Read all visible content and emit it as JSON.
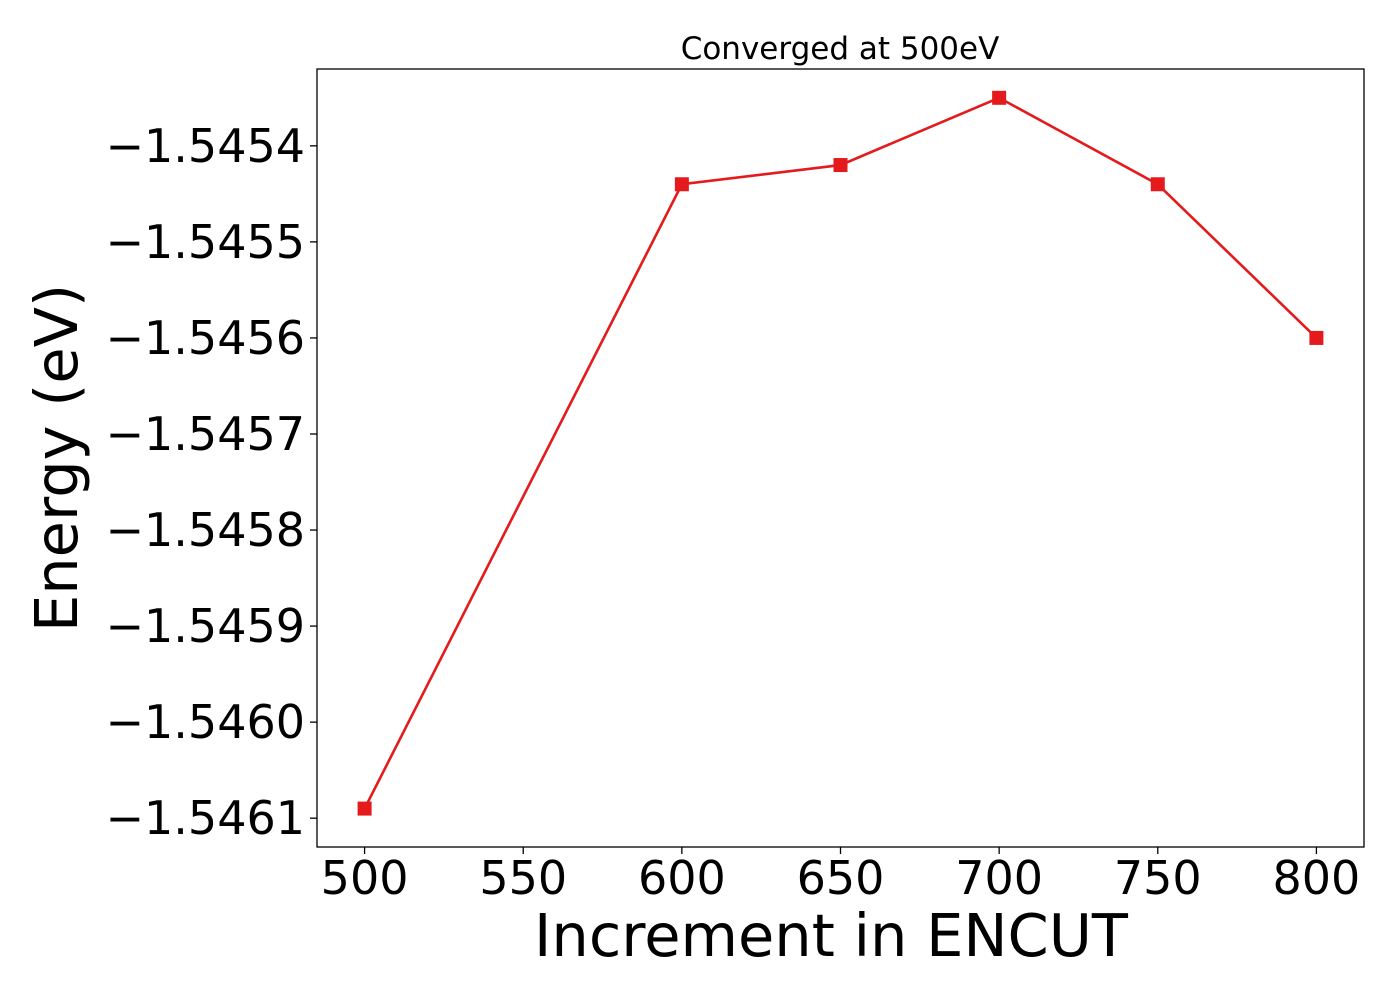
{
  "chart_data": {
    "type": "line",
    "title": "Converged at 500eV",
    "xlabel": "Increment in ENCUT",
    "ylabel": "Energy (eV)",
    "x": [
      500,
      600,
      650,
      700,
      750,
      800
    ],
    "series": [
      {
        "values": [
          -1.54609,
          -1.54544,
          -1.54542,
          -1.54535,
          -1.54544,
          -1.5456
        ],
        "color": "#e41a1c",
        "marker": "square"
      }
    ],
    "xticks": [
      500,
      550,
      600,
      650,
      700,
      750,
      800
    ],
    "xtick_labels": [
      "500",
      "550",
      "600",
      "650",
      "700",
      "750",
      "800"
    ],
    "yticks": [
      -1.5454,
      -1.5455,
      -1.5456,
      -1.5457,
      -1.5458,
      -1.5459,
      -1.546,
      -1.5461
    ],
    "ytick_labels": [
      "−1.5454",
      "−1.5455",
      "−1.5456",
      "−1.5457",
      "−1.5458",
      "−1.5459",
      "−1.5460",
      "−1.5461"
    ],
    "xlim": [
      485,
      815
    ],
    "ylim": [
      -1.54613,
      -1.54532
    ],
    "grid": false,
    "legend": "none"
  }
}
